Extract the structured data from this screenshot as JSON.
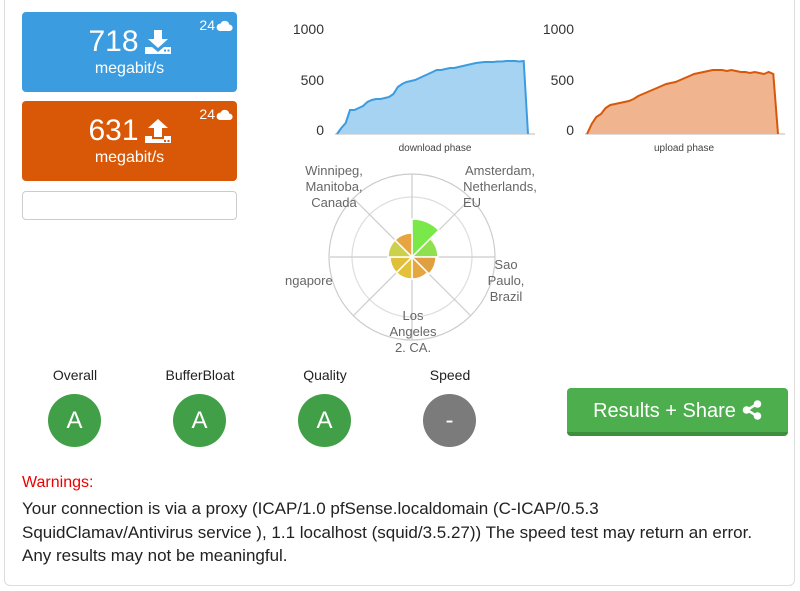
{
  "download": {
    "value": "718",
    "unit": "megabit/s",
    "servers": "24",
    "color": "#3c9ce0"
  },
  "upload": {
    "value": "631",
    "unit": "megabit/s",
    "servers": "24",
    "color": "#d85808"
  },
  "download_chart": {
    "label": "download phase",
    "y_ticks": [
      "1000",
      "500",
      "0"
    ],
    "ylim": [
      0,
      1000
    ],
    "values": [
      0,
      60,
      110,
      240,
      240,
      260,
      280,
      320,
      340,
      350,
      350,
      360,
      370,
      400,
      470,
      500,
      520,
      530,
      540,
      560,
      580,
      600,
      620,
      640,
      640,
      650,
      660,
      660,
      670,
      680,
      690,
      700,
      710,
      715,
      720,
      720,
      720,
      725,
      725,
      730,
      730,
      730,
      725,
      730,
      0
    ],
    "fill": "#a6d3f2",
    "stroke": "#3c9ce0"
  },
  "upload_chart": {
    "label": "upload phase",
    "y_ticks": [
      "1000",
      "500",
      "0"
    ],
    "ylim": [
      0,
      1000
    ],
    "values": [
      0,
      100,
      170,
      200,
      260,
      290,
      300,
      310,
      320,
      330,
      350,
      380,
      400,
      420,
      440,
      460,
      480,
      500,
      510,
      520,
      540,
      560,
      580,
      600,
      610,
      620,
      630,
      640,
      640,
      640,
      630,
      640,
      630,
      620,
      620,
      610,
      620,
      610,
      600,
      620,
      600,
      0
    ],
    "fill": "#f0b48f",
    "stroke": "#d85808"
  },
  "radar": {
    "labels": {
      "winnipeg": [
        "Winnipeg,",
        "Manitoba,",
        "Canada"
      ],
      "amsterdam": [
        "Amsterdam,",
        "Netherlands,",
        "EU"
      ],
      "saopaulo": [
        "Sao",
        "Paulo,",
        "Brazil"
      ],
      "losangeles": [
        "Los",
        "Angeles",
        "2, CA,"
      ],
      "singapore": [
        "ngapore"
      ]
    },
    "wedge_colors": [
      "#7be84a",
      "#8ee04e",
      "#e0a040",
      "#e6a640",
      "#e3c23a",
      "#e0c03a",
      "#ccd04a",
      "#e8a440"
    ]
  },
  "grades": [
    {
      "label": "Overall",
      "value": "A",
      "color": "#41a047"
    },
    {
      "label": "BufferBloat",
      "value": "A",
      "color": "#41a047"
    },
    {
      "label": "Quality",
      "value": "A",
      "color": "#41a047"
    },
    {
      "label": "Speed",
      "value": "-",
      "color": "#7b7b7b"
    }
  ],
  "results_button": {
    "label": "Results + Share",
    "icon": "share-icon"
  },
  "warnings": {
    "title": "Warnings:",
    "lines": [
      "Your connection is via a proxy (ICAP/1.0 pfSense.localdomain (C-ICAP/0.5.3",
      "SquidClamav/Antivirus service ), 1.1 localhost (squid/3.5.27)) The speed test may return an error.",
      "Any results may not be meaningful."
    ]
  }
}
